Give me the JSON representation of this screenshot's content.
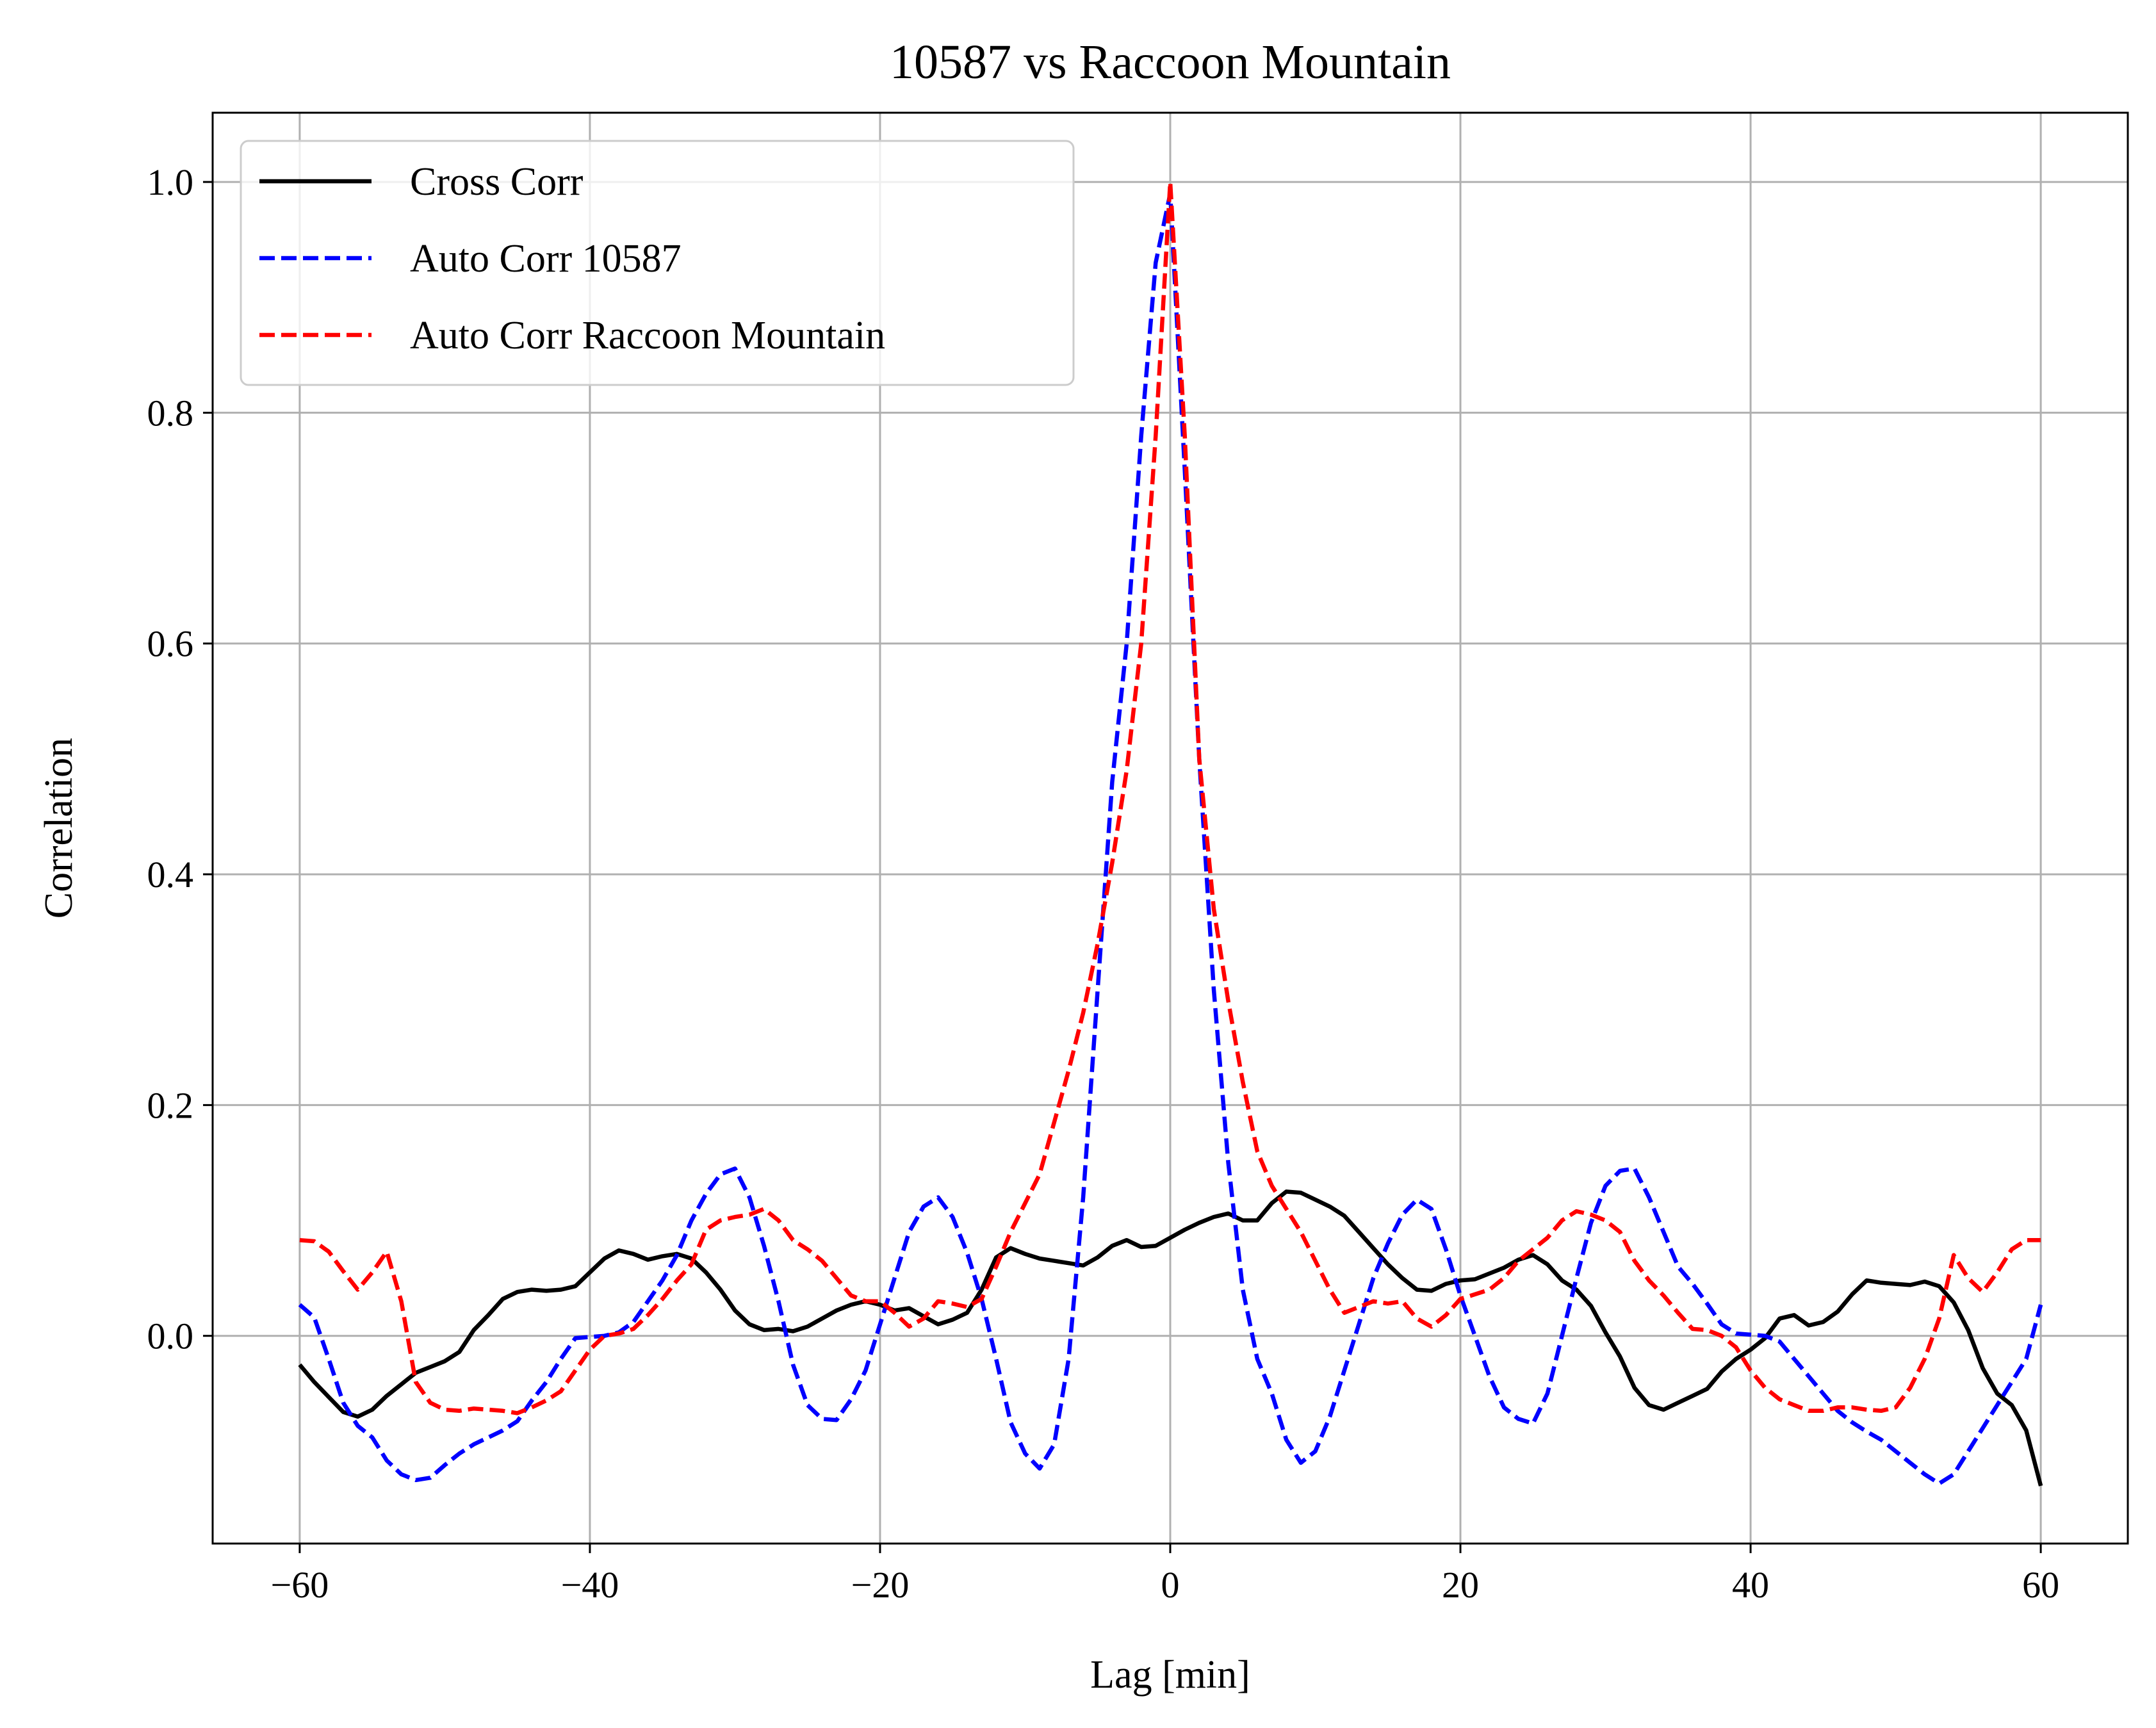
{
  "chart_data": {
    "type": "line",
    "title": "10587 vs Raccoon Mountain",
    "xlabel": "Lag [min]",
    "ylabel": "Correlation",
    "xlim": [
      -66,
      66
    ],
    "ylim": [
      -0.18,
      1.06
    ],
    "xticks": [
      -60,
      -40,
      -20,
      0,
      20,
      40,
      60
    ],
    "xtick_labels": [
      "−60",
      "−40",
      "−20",
      "0",
      "20",
      "40",
      "60"
    ],
    "yticks": [
      0.0,
      0.2,
      0.4,
      0.6,
      0.8,
      1.0
    ],
    "ytick_labels": [
      "0.0",
      "0.2",
      "0.4",
      "0.6",
      "0.8",
      "1.0"
    ],
    "grid": true,
    "legend_position": "top-left",
    "series": [
      {
        "name": "Cross Corr",
        "color": "#000000",
        "style": "solid",
        "x": [
          -60,
          -59,
          -58,
          -57,
          -56,
          -55,
          -54,
          -53,
          -52,
          -51,
          -50,
          -49,
          -48,
          -47,
          -46,
          -45,
          -44,
          -43,
          -42,
          -41,
          -40,
          -39,
          -38,
          -37,
          -36,
          -35,
          -34,
          -33,
          -32,
          -31,
          -30,
          -29,
          -28,
          -27,
          -26,
          -25,
          -24,
          -23,
          -22,
          -21,
          -20,
          -19,
          -18,
          -17,
          -16,
          -15,
          -14,
          -13,
          -12,
          -11,
          -10,
          -9,
          -8,
          -7,
          -6,
          -5,
          -4,
          -3,
          -2,
          -1,
          0,
          1,
          2,
          3,
          4,
          5,
          6,
          7,
          8,
          9,
          10,
          11,
          12,
          13,
          14,
          15,
          16,
          17,
          18,
          19,
          20,
          21,
          22,
          23,
          24,
          25,
          26,
          27,
          28,
          29,
          30,
          31,
          32,
          33,
          34,
          35,
          36,
          37,
          38,
          39,
          40,
          41,
          42,
          43,
          44,
          45,
          46,
          47,
          48,
          49,
          50,
          51,
          52,
          53,
          54,
          55,
          56,
          57,
          58,
          59,
          60
        ],
        "values": [
          -0.025,
          -0.04,
          -0.053,
          -0.066,
          -0.07,
          -0.064,
          -0.052,
          -0.042,
          -0.032,
          -0.027,
          -0.022,
          -0.014,
          0.005,
          0.018,
          0.032,
          0.038,
          0.04,
          0.039,
          0.04,
          0.043,
          0.055,
          0.067,
          0.074,
          0.071,
          0.066,
          0.069,
          0.071,
          0.067,
          0.055,
          0.04,
          0.022,
          0.01,
          0.005,
          0.006,
          0.004,
          0.008,
          0.015,
          0.022,
          0.027,
          0.03,
          0.027,
          0.022,
          0.024,
          0.017,
          0.01,
          0.014,
          0.02,
          0.04,
          0.068,
          0.076,
          0.071,
          0.067,
          0.065,
          0.063,
          0.061,
          0.068,
          0.078,
          0.083,
          0.077,
          0.078,
          0.085,
          0.092,
          0.098,
          0.103,
          0.106,
          0.1,
          0.1,
          0.115,
          0.125,
          0.124,
          0.118,
          0.112,
          0.104,
          0.09,
          0.076,
          0.062,
          0.05,
          0.04,
          0.039,
          0.045,
          0.048,
          0.049,
          0.054,
          0.059,
          0.066,
          0.07,
          0.062,
          0.048,
          0.04,
          0.026,
          0.003,
          -0.018,
          -0.045,
          -0.06,
          -0.064,
          -0.058,
          -0.052,
          -0.046,
          -0.031,
          -0.02,
          -0.012,
          -0.002,
          0.015,
          0.018,
          0.009,
          0.012,
          0.021,
          0.036,
          0.048,
          0.046,
          0.045,
          0.044,
          0.047,
          0.043,
          0.029,
          0.005,
          -0.028,
          -0.05,
          -0.06,
          -0.082,
          -0.13
        ]
      },
      {
        "name": "Auto Corr 10587",
        "color": "#0000ff",
        "style": "dashed",
        "x": [
          -60,
          -59,
          -58,
          -57,
          -56,
          -55,
          -54,
          -53,
          -52,
          -51,
          -50,
          -49,
          -48,
          -47,
          -46,
          -45,
          -44,
          -43,
          -42,
          -41,
          -40,
          -39,
          -38,
          -37,
          -36,
          -35,
          -34,
          -33,
          -32,
          -31,
          -30,
          -29,
          -28,
          -27,
          -26,
          -25,
          -24,
          -23,
          -22,
          -21,
          -20,
          -19,
          -18,
          -17,
          -16,
          -15,
          -14,
          -13,
          -12,
          -11,
          -10,
          -9,
          -8,
          -7,
          -6,
          -5,
          -4,
          -3,
          -2,
          -1,
          0,
          1,
          2,
          3,
          4,
          5,
          6,
          7,
          8,
          9,
          10,
          11,
          12,
          13,
          14,
          15,
          16,
          17,
          18,
          19,
          20,
          21,
          22,
          23,
          24,
          25,
          26,
          27,
          28,
          29,
          30,
          31,
          32,
          33,
          34,
          35,
          36,
          37,
          38,
          39,
          40,
          41,
          42,
          43,
          44,
          45,
          46,
          47,
          48,
          49,
          50,
          51,
          52,
          53,
          54,
          55,
          56,
          57,
          58,
          59,
          60
        ],
        "values": [
          0.027,
          0.016,
          -0.02,
          -0.058,
          -0.078,
          -0.088,
          -0.108,
          -0.12,
          -0.125,
          -0.123,
          -0.112,
          -0.102,
          -0.094,
          -0.088,
          -0.082,
          -0.074,
          -0.056,
          -0.04,
          -0.02,
          -0.002,
          -0.001,
          0.0,
          0.003,
          0.012,
          0.03,
          0.048,
          0.07,
          0.1,
          0.123,
          0.14,
          0.145,
          0.12,
          0.078,
          0.03,
          -0.025,
          -0.06,
          -0.072,
          -0.073,
          -0.055,
          -0.03,
          0.01,
          0.05,
          0.09,
          0.112,
          0.12,
          0.103,
          0.072,
          0.032,
          -0.02,
          -0.075,
          -0.102,
          -0.115,
          -0.094,
          -0.02,
          0.12,
          0.3,
          0.48,
          0.6,
          0.78,
          0.93,
          0.99,
          0.75,
          0.5,
          0.3,
          0.15,
          0.04,
          -0.02,
          -0.05,
          -0.09,
          -0.11,
          -0.1,
          -0.07,
          -0.03,
          0.01,
          0.05,
          0.08,
          0.105,
          0.118,
          0.11,
          0.075,
          0.035,
          0.0,
          -0.035,
          -0.062,
          -0.072,
          -0.076,
          -0.05,
          0.0,
          0.05,
          0.098,
          0.13,
          0.143,
          0.145,
          0.12,
          0.09,
          0.06,
          0.045,
          0.028,
          0.01,
          0.002,
          0.001,
          0.0,
          -0.005,
          -0.02,
          -0.035,
          -0.05,
          -0.065,
          -0.075,
          -0.083,
          -0.09,
          -0.1,
          -0.11,
          -0.12,
          -0.128,
          -0.12,
          -0.1,
          -0.08,
          -0.06,
          -0.04,
          -0.02,
          0.027
        ]
      },
      {
        "name": "Auto Corr Raccoon Mountain",
        "color": "#ff0000",
        "style": "dashed",
        "x": [
          -60,
          -59,
          -58,
          -57,
          -56,
          -55,
          -54,
          -53,
          -52,
          -51,
          -50,
          -49,
          -48,
          -47,
          -46,
          -45,
          -44,
          -43,
          -42,
          -41,
          -40,
          -39,
          -38,
          -37,
          -36,
          -35,
          -34,
          -33,
          -32,
          -31,
          -30,
          -29,
          -28,
          -27,
          -26,
          -25,
          -24,
          -23,
          -22,
          -21,
          -20,
          -19,
          -18,
          -17,
          -16,
          -15,
          -14,
          -13,
          -12,
          -11,
          -10,
          -9,
          -8,
          -7,
          -6,
          -5,
          -4,
          -3,
          -2,
          -1,
          0,
          1,
          2,
          3,
          4,
          5,
          6,
          7,
          8,
          9,
          10,
          11,
          12,
          13,
          14,
          15,
          16,
          17,
          18,
          19,
          20,
          21,
          22,
          23,
          24,
          25,
          26,
          27,
          28,
          29,
          30,
          31,
          32,
          33,
          34,
          35,
          36,
          37,
          38,
          39,
          40,
          41,
          42,
          43,
          44,
          45,
          46,
          47,
          48,
          49,
          50,
          51,
          52,
          53,
          54,
          55,
          56,
          57,
          58,
          59,
          60
        ],
        "values": [
          0.083,
          0.082,
          0.073,
          0.056,
          0.04,
          0.055,
          0.073,
          0.03,
          -0.04,
          -0.058,
          -0.064,
          -0.065,
          -0.063,
          -0.064,
          -0.065,
          -0.067,
          -0.062,
          -0.056,
          -0.048,
          -0.03,
          -0.012,
          0.0,
          0.002,
          0.006,
          0.018,
          0.032,
          0.048,
          0.062,
          0.092,
          0.1,
          0.103,
          0.105,
          0.11,
          0.1,
          0.083,
          0.075,
          0.065,
          0.05,
          0.035,
          0.03,
          0.03,
          0.02,
          0.008,
          0.015,
          0.03,
          0.028,
          0.025,
          0.032,
          0.06,
          0.09,
          0.115,
          0.14,
          0.185,
          0.23,
          0.28,
          0.34,
          0.41,
          0.49,
          0.6,
          0.78,
          1.0,
          0.78,
          0.5,
          0.37,
          0.29,
          0.22,
          0.16,
          0.13,
          0.11,
          0.09,
          0.065,
          0.04,
          0.02,
          0.025,
          0.03,
          0.028,
          0.03,
          0.015,
          0.008,
          0.018,
          0.032,
          0.036,
          0.04,
          0.05,
          0.065,
          0.075,
          0.085,
          0.1,
          0.108,
          0.105,
          0.1,
          0.09,
          0.065,
          0.048,
          0.035,
          0.02,
          0.006,
          0.005,
          0.0,
          -0.01,
          -0.03,
          -0.045,
          -0.055,
          -0.06,
          -0.065,
          -0.065,
          -0.062,
          -0.062,
          -0.064,
          -0.065,
          -0.062,
          -0.045,
          -0.02,
          0.015,
          0.07,
          0.05,
          0.038,
          0.055,
          0.075,
          0.083,
          0.083
        ]
      }
    ]
  }
}
